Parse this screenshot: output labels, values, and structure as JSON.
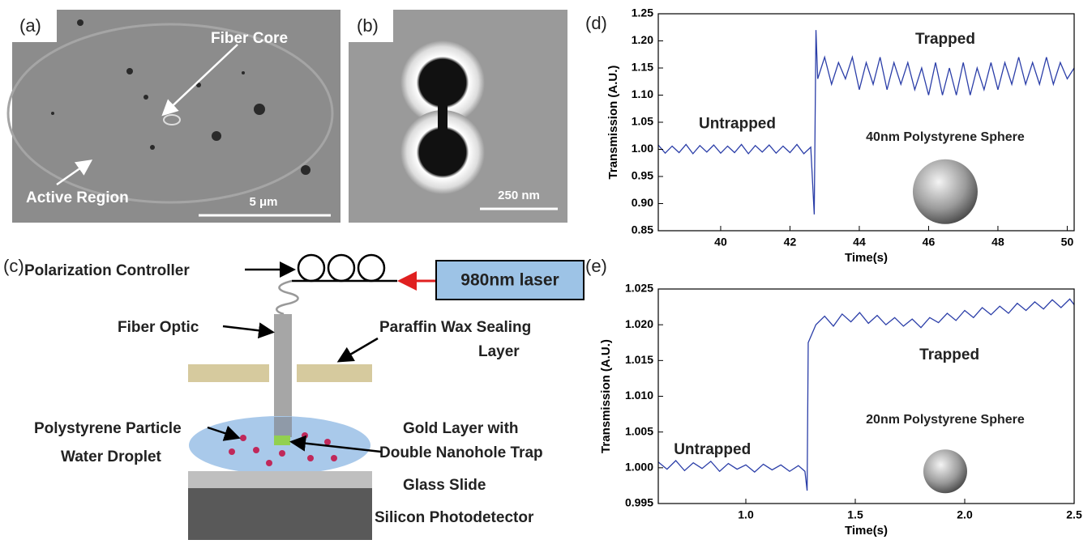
{
  "panels": {
    "a": {
      "label": "(a)",
      "fiber_core": "Fiber Core",
      "active_region": "Active Region",
      "scale_bar": "5 μm"
    },
    "b": {
      "label": "(b)",
      "scale_bar": "250 nm"
    },
    "c": {
      "label": "(c)",
      "polarization_controller": "Polarization Controller",
      "laser": "980nm laser",
      "fiber_optic": "Fiber Optic",
      "wax_line1": "Paraffin Wax Sealing",
      "wax_line2": "Layer",
      "particle": "Polystyrene Particle",
      "gold_line1": "Gold Layer with",
      "gold_line2": "Double Nanohole Trap",
      "droplet": "Water Droplet",
      "glass": "Glass Slide",
      "detector": "Silicon Photodetector"
    }
  },
  "chart_data": [
    {
      "type": "line",
      "label": "(d)",
      "xlabel": "Time(s)",
      "ylabel": "Transmission (A.U.)",
      "annotations": [
        "Untrapped",
        "Trapped",
        "40nm Polystyrene Sphere"
      ],
      "x": [
        38.2,
        38.4,
        38.6,
        38.8,
        39.0,
        39.2,
        39.4,
        39.6,
        39.8,
        40.0,
        40.2,
        40.4,
        40.6,
        40.8,
        41.0,
        41.2,
        41.4,
        41.6,
        41.8,
        42.0,
        42.2,
        42.4,
        42.6,
        42.7,
        42.75,
        42.8,
        43.0,
        43.2,
        43.4,
        43.6,
        43.8,
        44.0,
        44.2,
        44.4,
        44.6,
        44.8,
        45.0,
        45.2,
        45.4,
        45.6,
        45.8,
        46.0,
        46.2,
        46.4,
        46.6,
        46.8,
        47.0,
        47.2,
        47.4,
        47.6,
        47.8,
        48.0,
        48.2,
        48.4,
        48.6,
        48.8,
        49.0,
        49.2,
        49.4,
        49.6,
        49.8,
        50.0,
        50.2
      ],
      "series": [
        {
          "color": "#2b3ea8",
          "values": [
            1.008,
            0.993,
            1.006,
            0.994,
            1.009,
            0.992,
            1.007,
            0.995,
            1.008,
            0.993,
            1.006,
            0.994,
            1.009,
            0.992,
            1.007,
            0.995,
            1.008,
            0.993,
            1.006,
            0.994,
            1.009,
            0.992,
            1.004,
            0.88,
            1.22,
            1.13,
            1.17,
            1.12,
            1.16,
            1.13,
            1.17,
            1.11,
            1.16,
            1.12,
            1.17,
            1.11,
            1.16,
            1.12,
            1.16,
            1.11,
            1.15,
            1.1,
            1.16,
            1.1,
            1.15,
            1.1,
            1.16,
            1.1,
            1.15,
            1.11,
            1.16,
            1.11,
            1.16,
            1.12,
            1.17,
            1.12,
            1.16,
            1.12,
            1.17,
            1.12,
            1.16,
            1.13,
            1.15
          ]
        }
      ],
      "xlim": [
        38.2,
        50.2
      ],
      "ylim": [
        0.85,
        1.25
      ],
      "xticks": [
        40,
        42,
        44,
        46,
        48,
        50
      ],
      "yticks": [
        0.85,
        {
          "value": 0.9,
          "label": "0.90"
        },
        0.95,
        {
          "value": 1.0,
          "label": "1.00"
        },
        1.05,
        {
          "value": 1.1,
          "label": "1.10"
        },
        1.15,
        {
          "value": 1.2,
          "label": "1.20"
        },
        1.25
      ]
    },
    {
      "type": "line",
      "label": "(e)",
      "xlabel": "Time(s)",
      "ylabel": "Transmission (A.U.)",
      "annotations": [
        "Untrapped",
        "Trapped",
        "20nm Polystyrene Sphere"
      ],
      "x": [
        0.6,
        0.64,
        0.68,
        0.72,
        0.76,
        0.8,
        0.84,
        0.88,
        0.92,
        0.96,
        1.0,
        1.04,
        1.08,
        1.12,
        1.16,
        1.2,
        1.24,
        1.27,
        1.28,
        1.285,
        1.32,
        1.36,
        1.4,
        1.44,
        1.48,
        1.52,
        1.56,
        1.6,
        1.64,
        1.68,
        1.72,
        1.76,
        1.8,
        1.84,
        1.88,
        1.92,
        1.96,
        2.0,
        2.04,
        2.08,
        2.12,
        2.16,
        2.2,
        2.24,
        2.28,
        2.32,
        2.36,
        2.4,
        2.44,
        2.48,
        2.5
      ],
      "series": [
        {
          "color": "#2b3ea8",
          "values": [
            1.0008,
            0.9998,
            1.001,
            0.9996,
            1.0007,
            0.9999,
            1.0009,
            0.9995,
            1.0006,
            0.9998,
            1.0004,
            0.9994,
            1.0005,
            0.9997,
            1.0004,
            0.9995,
            1.0003,
            0.9995,
            0.9968,
            1.0175,
            1.02,
            1.0212,
            1.0198,
            1.0215,
            1.0204,
            1.0217,
            1.0202,
            1.0213,
            1.02,
            1.021,
            1.0198,
            1.0208,
            1.0196,
            1.021,
            1.0203,
            1.0216,
            1.0206,
            1.022,
            1.021,
            1.0224,
            1.0214,
            1.0226,
            1.0216,
            1.023,
            1.022,
            1.0232,
            1.0222,
            1.0235,
            1.0224,
            1.0236,
            1.0228
          ]
        }
      ],
      "xlim": [
        0.6,
        2.5
      ],
      "ylim": [
        0.995,
        1.025
      ],
      "xticks": [
        {
          "value": 1.0,
          "label": "1.0"
        },
        1.5,
        {
          "value": 2.0,
          "label": "2.0"
        },
        2.5
      ],
      "yticks": [
        0.995,
        {
          "value": 1.0,
          "label": "1.000"
        },
        1.005,
        {
          "value": 1.01,
          "label": "1.010"
        },
        1.015,
        {
          "value": 1.02,
          "label": "1.020"
        },
        1.025
      ]
    }
  ]
}
